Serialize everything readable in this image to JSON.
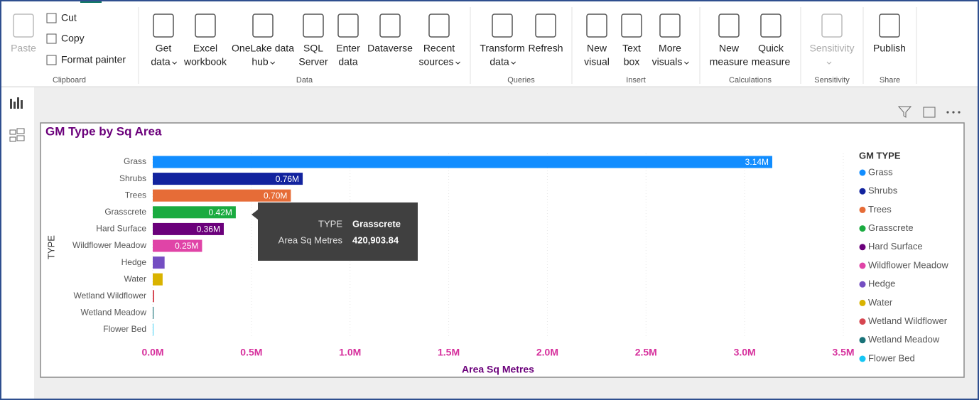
{
  "ribbon": {
    "groups": [
      {
        "label": "Clipboard",
        "buttons": [
          {
            "label": [
              "Paste"
            ],
            "disabled": true
          },
          {
            "label": [
              "Cut"
            ],
            "small": true
          },
          {
            "label": [
              "Copy"
            ],
            "small": true
          },
          {
            "label": [
              "Format painter"
            ],
            "small": true
          }
        ]
      },
      {
        "label": "Data",
        "buttons": [
          {
            "label": [
              "Get",
              "data"
            ],
            "dropdown": true
          },
          {
            "label": [
              "Excel",
              "workbook"
            ]
          },
          {
            "label": [
              "OneLake data",
              "hub"
            ],
            "dropdown": true
          },
          {
            "label": [
              "SQL",
              "Server"
            ]
          },
          {
            "label": [
              "Enter",
              "data"
            ]
          },
          {
            "label": [
              "Dataverse"
            ]
          },
          {
            "label": [
              "Recent",
              "sources"
            ],
            "dropdown": true
          }
        ]
      },
      {
        "label": "Queries",
        "buttons": [
          {
            "label": [
              "Transform",
              "data"
            ],
            "dropdown": true
          },
          {
            "label": [
              "Refresh"
            ]
          }
        ]
      },
      {
        "label": "Insert",
        "buttons": [
          {
            "label": [
              "New",
              "visual"
            ]
          },
          {
            "label": [
              "Text",
              "box"
            ]
          },
          {
            "label": [
              "More",
              "visuals"
            ],
            "dropdown": true
          }
        ]
      },
      {
        "label": "Calculations",
        "buttons": [
          {
            "label": [
              "New",
              "measure"
            ]
          },
          {
            "label": [
              "Quick",
              "measure"
            ]
          }
        ]
      },
      {
        "label": "Sensitivity",
        "buttons": [
          {
            "label": [
              "Sensitivity"
            ],
            "disabled": true,
            "dropdown": true
          }
        ]
      },
      {
        "label": "Share",
        "buttons": [
          {
            "label": [
              "Publish"
            ]
          }
        ]
      }
    ]
  },
  "chart_data": {
    "type": "hbar",
    "title": "GM Type by Sq Area",
    "x_label": "Area Sq Metres",
    "y_label": "TYPE",
    "categories": [
      "Grass",
      "Shrubs",
      "Trees",
      "Grasscrete",
      "Hard Surface",
      "Wildflower Meadow",
      "Hedge",
      "Water",
      "Wetland Wildflower",
      "Wetland Meadow",
      "Flower Bed"
    ],
    "values": [
      3140000,
      760000,
      700000,
      420903.84,
      360000,
      250000,
      60000,
      50000,
      7000,
      4000,
      1000
    ],
    "value_labels": [
      "3.14M",
      "0.76M",
      "0.70M",
      "0.42M",
      "0.36M",
      "0.25M",
      null,
      null,
      null,
      null,
      null
    ],
    "colors": [
      "#118dff",
      "#12239e",
      "#e66c37",
      "#1aab40",
      "#6b007b",
      "#e044a7",
      "#744ec2",
      "#d9b300",
      "#d64550",
      "#197278",
      "#15c6f4"
    ],
    "xlim": [
      0,
      3500000
    ],
    "xticks": [
      {
        "value": 0,
        "label": "0.0M"
      },
      {
        "value": 500000,
        "label": "0.5M"
      },
      {
        "value": 1000000,
        "label": "1.0M"
      },
      {
        "value": 1500000,
        "label": "1.5M"
      },
      {
        "value": 2000000,
        "label": "2.0M"
      },
      {
        "value": 2500000,
        "label": "2.5M"
      },
      {
        "value": 3000000,
        "label": "3.0M"
      },
      {
        "value": 3500000,
        "label": "3.5M"
      }
    ],
    "grid": true,
    "legend": {
      "title": "GM TYPE",
      "position": "right"
    },
    "tooltip": {
      "key1": "TYPE",
      "value1": "Grasscrete",
      "key2": "Area Sq Metres",
      "value2": "420,903.84"
    }
  }
}
